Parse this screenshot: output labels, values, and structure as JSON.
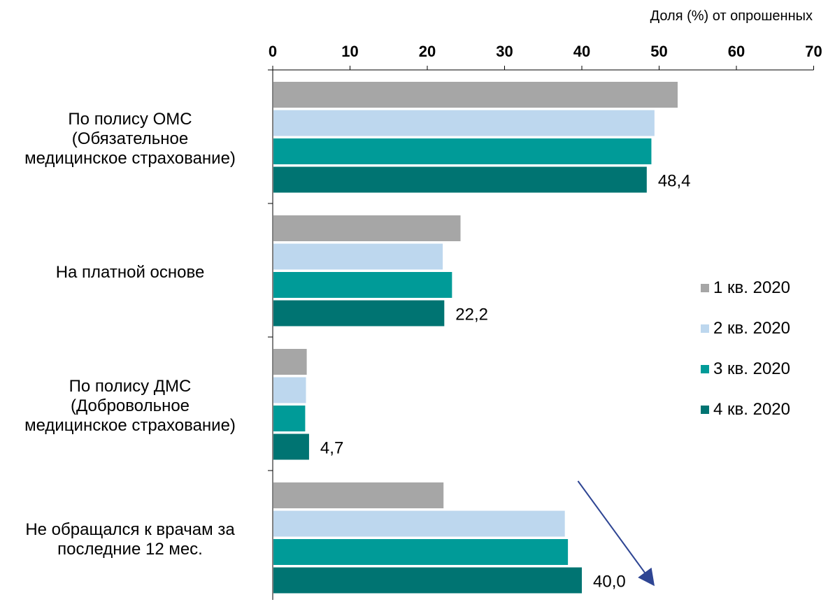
{
  "chart_data": {
    "type": "bar",
    "orientation": "horizontal",
    "xlabel": "Доля (%) от опрошенных",
    "xlim": [
      0,
      70
    ],
    "xticks": [
      0,
      10,
      20,
      30,
      40,
      50,
      60,
      70
    ],
    "grid": false,
    "legend_position": "right",
    "categories": [
      [
        "По полису ОМС",
        "(Обязательное",
        "медицинское страхование)"
      ],
      [
        "На платной основе"
      ],
      [
        "По полису ДМС",
        "(Добровольное",
        "медицинское страхование)"
      ],
      [
        "Не обращался к врачам за",
        "последние 12 мес."
      ]
    ],
    "series": [
      {
        "name": "1 кв. 2020",
        "color": "#a6a6a6",
        "values": [
          52.4,
          24.3,
          4.4,
          22.1
        ]
      },
      {
        "name": "2 кв. 2020",
        "color": "#bdd7ee",
        "values": [
          49.4,
          22.0,
          4.3,
          37.8
        ]
      },
      {
        "name": "3 кв. 2020",
        "color": "#009b98",
        "values": [
          49.0,
          23.2,
          4.2,
          38.2
        ]
      },
      {
        "name": "4 кв. 2020",
        "color": "#007472",
        "values": [
          48.4,
          22.2,
          4.7,
          40.0
        ]
      }
    ],
    "data_labels": [
      "48,4",
      "22,2",
      "4,7",
      "40,0"
    ],
    "annotation": {
      "type": "arrow",
      "color": "#2e4593",
      "from_value": 39.5,
      "to_value": 49.2
    }
  }
}
